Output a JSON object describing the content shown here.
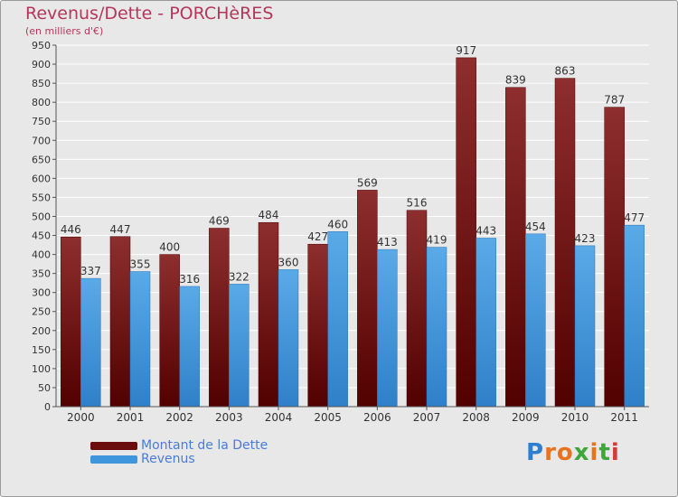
{
  "title": "Revenus/Dette - PORCHèRES",
  "subtitle": "(en milliers d'€)",
  "colors": {
    "dette": "#6b0d0d",
    "revenus": "#3f96dc",
    "title": "#b5365a"
  },
  "legend": {
    "dette_label": "Montant de la Dette",
    "revenus_label": "Revenus"
  },
  "logo": {
    "text": "Proxiti"
  },
  "chart_data": {
    "type": "bar",
    "title": "Revenus/Dette - PORCHèRES",
    "ylabel": "(en milliers d'€)",
    "xlabel": "",
    "ylim": [
      0,
      950
    ],
    "ytick_step": 50,
    "grid": true,
    "legend_position": "bottom-left",
    "categories": [
      "2000",
      "2001",
      "2002",
      "2003",
      "2004",
      "2005",
      "2006",
      "2007",
      "2008",
      "2009",
      "2010",
      "2011"
    ],
    "series": [
      {
        "name": "Montant de la Dette",
        "values": [
          446,
          447,
          400,
          469,
          484,
          427,
          569,
          516,
          917,
          839,
          863,
          787
        ]
      },
      {
        "name": "Revenus",
        "values": [
          337,
          355,
          316,
          322,
          360,
          460,
          413,
          419,
          443,
          454,
          423,
          477
        ]
      }
    ]
  }
}
